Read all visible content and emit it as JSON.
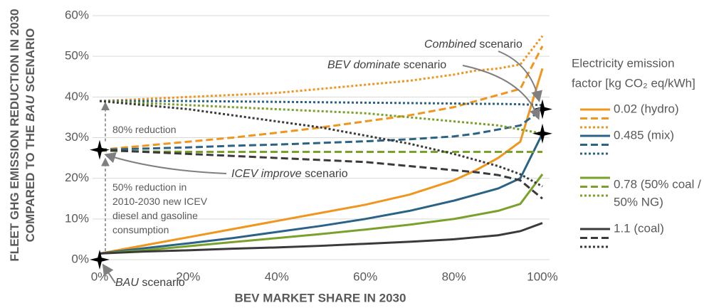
{
  "chart_data": {
    "type": "line",
    "y_title_lines": [
      [
        {
          "text": "FLEET GHG EMISSION REDUCTION IN 2030"
        }
      ],
      [
        {
          "text": "COMPARED TO THE "
        },
        {
          "text": "BAU",
          "italic": true
        },
        {
          "text": " SCENARIO"
        }
      ]
    ],
    "x_title": "BEV MARKET SHARE IN 2030",
    "x": [
      0,
      10,
      20,
      30,
      40,
      50,
      60,
      70,
      80,
      85,
      90,
      95,
      100
    ],
    "xlim": [
      0,
      100
    ],
    "xticks": [
      {
        "value": 0,
        "label": "0%"
      },
      {
        "value": 20,
        "label": "20%"
      },
      {
        "value": 40,
        "label": "40%"
      },
      {
        "value": 60,
        "label": "60%"
      },
      {
        "value": 80,
        "label": "80%"
      },
      {
        "value": 100,
        "label": "100%"
      }
    ],
    "ylim": [
      0,
      60
    ],
    "yticks": [
      {
        "value": 0,
        "label": "0%"
      },
      {
        "value": 10,
        "label": "10%"
      },
      {
        "value": 20,
        "label": "20%"
      },
      {
        "value": 30,
        "label": "30%"
      },
      {
        "value": 40,
        "label": "40%"
      },
      {
        "value": 50,
        "label": "50%"
      },
      {
        "value": 60,
        "label": "60%"
      }
    ],
    "grid": true,
    "legend_title_lines": [
      "Electricity  emission",
      "factor [kg CO₂ eq/kWh]"
    ],
    "groups": [
      {
        "name_lines": [
          "0.02 (hydro)"
        ],
        "color": "#f0961e"
      },
      {
        "name_lines": [
          "0.485 (mix)"
        ],
        "color": "#2b6386"
      },
      {
        "name_lines": [
          "0.78 (50% coal /",
          "50% NG)"
        ],
        "color": "#7aa12b"
      },
      {
        "name_lines": [
          "1.1 (coal)"
        ],
        "color": "#3a3a3a"
      }
    ],
    "series": [
      {
        "group": 0,
        "style": "solid",
        "values": [
          1.5,
          3.5,
          5.5,
          7.5,
          9.5,
          11.5,
          13.5,
          16,
          19.5,
          22,
          25,
          29,
          47
        ]
      },
      {
        "group": 0,
        "style": "dashed",
        "values": [
          27,
          28,
          29,
          30,
          31.2,
          32.5,
          34,
          35.5,
          37.5,
          39,
          40.5,
          42,
          52.5
        ]
      },
      {
        "group": 0,
        "style": "dotted",
        "values": [
          39,
          39.5,
          40,
          40.5,
          41,
          42,
          43,
          44,
          45.5,
          46.5,
          47,
          48,
          55
        ]
      },
      {
        "group": 1,
        "style": "solid",
        "values": [
          1.5,
          2.8,
          4,
          5.3,
          6.8,
          8.3,
          10,
          12,
          14.5,
          16,
          17.5,
          20,
          31
        ]
      },
      {
        "group": 1,
        "style": "dashed",
        "values": [
          27,
          27.3,
          27.6,
          28,
          28.3,
          28.7,
          29.1,
          29.6,
          30.3,
          31,
          32,
          33,
          37
        ]
      },
      {
        "group": 1,
        "style": "dotted",
        "values": [
          39,
          39,
          39,
          38.9,
          38.8,
          38.7,
          38.6,
          38.5,
          38.4,
          38.3,
          38.3,
          38.2,
          38
        ]
      },
      {
        "group": 2,
        "style": "solid",
        "values": [
          1.5,
          2.3,
          3.3,
          4.3,
          5.3,
          6.3,
          7.4,
          8.6,
          10,
          11,
          12,
          13.7,
          21
        ]
      },
      {
        "group": 2,
        "style": "dashed",
        "values": [
          26.8,
          26.6,
          26.5,
          26.5,
          26.5,
          26.5,
          26.5,
          26.5,
          26.5,
          26.5,
          26.5,
          26.5,
          26.5
        ]
      },
      {
        "group": 2,
        "style": "dotted",
        "values": [
          39,
          38.5,
          38,
          37.5,
          37,
          36.5,
          36,
          35,
          34,
          33.5,
          33,
          32,
          31
        ]
      },
      {
        "group": 3,
        "style": "solid",
        "values": [
          1.5,
          2,
          2.3,
          2.7,
          3,
          3.4,
          3.9,
          4.4,
          5,
          5.5,
          6,
          7,
          9
        ]
      },
      {
        "group": 3,
        "style": "dashed",
        "values": [
          27,
          26.5,
          26,
          25.5,
          25,
          24.5,
          24,
          23,
          22,
          21.5,
          20.8,
          19.5,
          15
        ]
      },
      {
        "group": 3,
        "style": "dotted",
        "values": [
          39,
          38,
          37,
          35.5,
          34,
          32.5,
          30.5,
          28.5,
          26,
          24.5,
          23,
          21,
          18
        ]
      }
    ],
    "markers": [
      {
        "x": 0,
        "y": 0
      },
      {
        "x": 0,
        "y": 27
      },
      {
        "x": 100,
        "y": 31
      },
      {
        "x": 100,
        "y": 37
      }
    ],
    "annotations": [
      {
        "lines": [
          [
            {
              "text": "Combined",
              "italic": true
            },
            {
              "text": " scenario"
            }
          ]
        ]
      },
      {
        "lines": [
          [
            {
              "text": "BEV dominate",
              "italic": true
            },
            {
              "text": " scenario"
            }
          ]
        ]
      },
      {
        "lines": [
          [
            {
              "text": "ICEV improve",
              "italic": true
            },
            {
              "text": " scenario"
            }
          ]
        ]
      },
      {
        "lines": [
          [
            {
              "text": "BAU",
              "italic": true
            },
            {
              "text": " scenario"
            }
          ]
        ]
      },
      {
        "lines": [
          [
            {
              "text": "80% reduction"
            }
          ]
        ]
      },
      {
        "lines": [
          [
            {
              "text": "50% reduction in"
            }
          ],
          [
            {
              "text": "2010-2030 new ICEV"
            }
          ],
          [
            {
              "text": "diesel and gasoline"
            }
          ],
          [
            {
              "text": "consumption"
            }
          ]
        ]
      }
    ]
  }
}
